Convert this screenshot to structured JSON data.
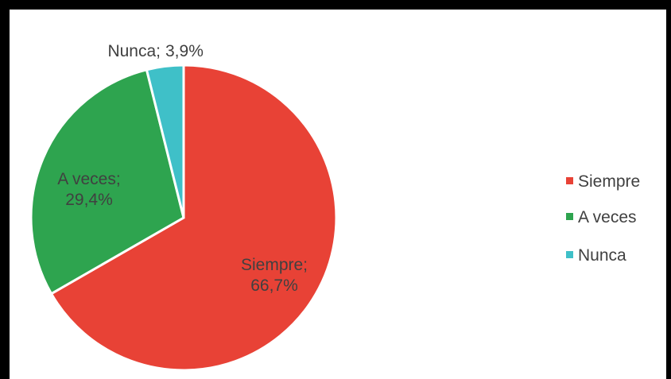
{
  "chart_data": {
    "type": "pie",
    "title": "",
    "categories": [
      "Siempre",
      "A veces",
      "Nunca"
    ],
    "values": [
      66.7,
      29.4,
      3.9
    ],
    "colors": [
      "#E84236",
      "#2EA44F",
      "#3FC0C8"
    ],
    "data_labels": [
      {
        "name": "Siempre;",
        "value": "66,7%"
      },
      {
        "name": "A veces;",
        "value": "29,4%"
      },
      {
        "name": "Nunca;",
        "value": "3,9%"
      }
    ],
    "legend": {
      "position": "right",
      "entries": [
        "Siempre",
        "A veces",
        "Nunca"
      ]
    }
  }
}
